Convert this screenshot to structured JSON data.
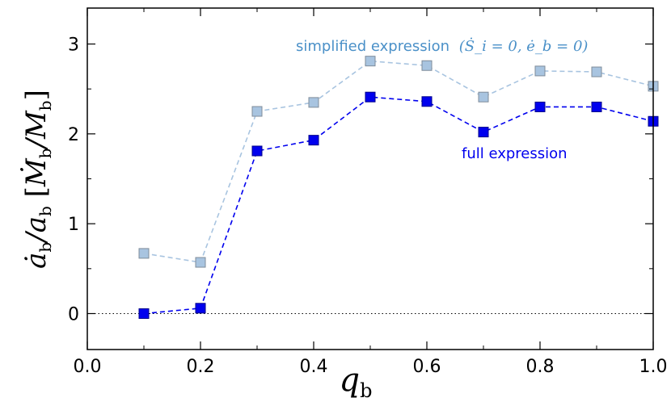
{
  "chart_data": {
    "type": "line",
    "xlabel": "q_b",
    "ylabel": "ȧ_b/a_b [Ṁ_b/M_b]",
    "xlim": [
      0.0,
      1.0
    ],
    "ylim": [
      -0.4,
      3.4
    ],
    "xticks": [
      "0.0",
      "0.2",
      "0.4",
      "0.6",
      "0.8",
      "1.0"
    ],
    "yticks": [
      "0",
      "1",
      "2",
      "3"
    ],
    "x": [
      0.1,
      0.2,
      0.3,
      0.4,
      0.5,
      0.6,
      0.7,
      0.8,
      0.9,
      1.0
    ],
    "series": [
      {
        "name": "simplified expression (Ṡ_i = 0,  ė_b = 0)",
        "values": [
          0.67,
          0.57,
          2.25,
          2.35,
          2.81,
          2.76,
          2.41,
          2.7,
          2.69,
          2.53
        ],
        "color": "#a8c4e0",
        "edge_color": "#7f8c9a"
      },
      {
        "name": "full expression",
        "values": [
          0.0,
          0.06,
          1.81,
          1.93,
          2.41,
          2.36,
          2.02,
          2.3,
          2.3,
          2.14
        ],
        "color": "#0000ee",
        "edge_color": "#00008b"
      }
    ],
    "reference_line": {
      "y": 0,
      "style": "dotted"
    },
    "annotations": [
      {
        "text": "simplified expression",
        "math": "(Ṡ_i = 0,  ė_b = 0)",
        "color": "#4a90c8"
      },
      {
        "text": "full expression",
        "color": "#0000ee"
      }
    ]
  }
}
